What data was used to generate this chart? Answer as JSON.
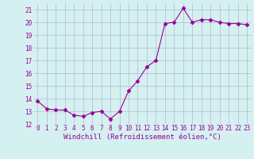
{
  "x": [
    0,
    1,
    2,
    3,
    4,
    5,
    6,
    7,
    8,
    9,
    10,
    11,
    12,
    13,
    14,
    15,
    16,
    17,
    18,
    19,
    20,
    21,
    22,
    23
  ],
  "y": [
    13.8,
    13.2,
    13.1,
    13.1,
    12.7,
    12.6,
    12.9,
    13.0,
    12.4,
    13.0,
    14.6,
    15.4,
    16.5,
    17.0,
    19.9,
    20.0,
    21.1,
    20.0,
    20.2,
    20.2,
    20.0,
    19.9,
    19.9,
    19.8
  ],
  "line_color": "#990099",
  "marker": "D",
  "markersize": 2.5,
  "linewidth": 0.8,
  "bg_color": "#d5f0f0",
  "grid_color": "#aaaacc",
  "xlabel": "Windchill (Refroidissement éolien,°C)",
  "xlabel_color": "#990099",
  "tick_color": "#990099",
  "ylim": [
    12,
    21.5
  ],
  "xlim": [
    -0.5,
    23.5
  ],
  "yticks": [
    12,
    13,
    14,
    15,
    16,
    17,
    18,
    19,
    20,
    21
  ],
  "xticks": [
    0,
    1,
    2,
    3,
    4,
    5,
    6,
    7,
    8,
    9,
    10,
    11,
    12,
    13,
    14,
    15,
    16,
    17,
    18,
    19,
    20,
    21,
    22,
    23
  ],
  "tick_fontsize": 5.5,
  "xlabel_fontsize": 6.5
}
